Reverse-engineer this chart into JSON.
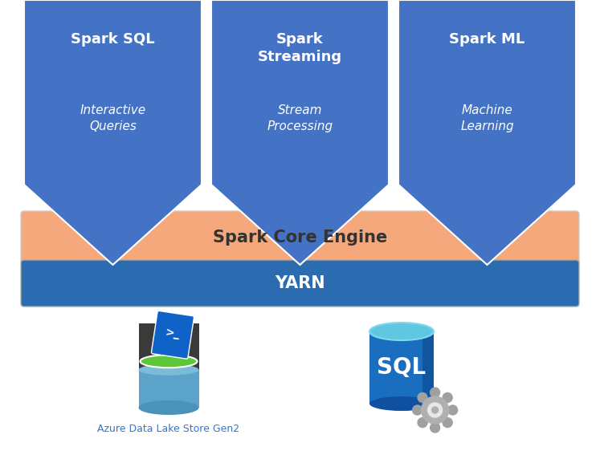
{
  "bg_color": "#ffffff",
  "blue_color": "#4472C4",
  "orange_color": "#F4A87C",
  "yarn_color": "#2B6CB0",
  "boxes": [
    {
      "title": "Spark SQL",
      "sub": "Interactive\nQueries"
    },
    {
      "title": "Spark\nStreaming",
      "sub": "Stream\nProcessing"
    },
    {
      "title": "Spark ML",
      "sub": "Machine\nLearning"
    }
  ],
  "core_label": "Spark Core Engine",
  "yarn_label": "YARN",
  "adls_label": "Azure Data Lake Store Gen2",
  "title_fontsize": 13,
  "sub_fontsize": 11,
  "core_fontsize": 15,
  "yarn_fontsize": 15
}
